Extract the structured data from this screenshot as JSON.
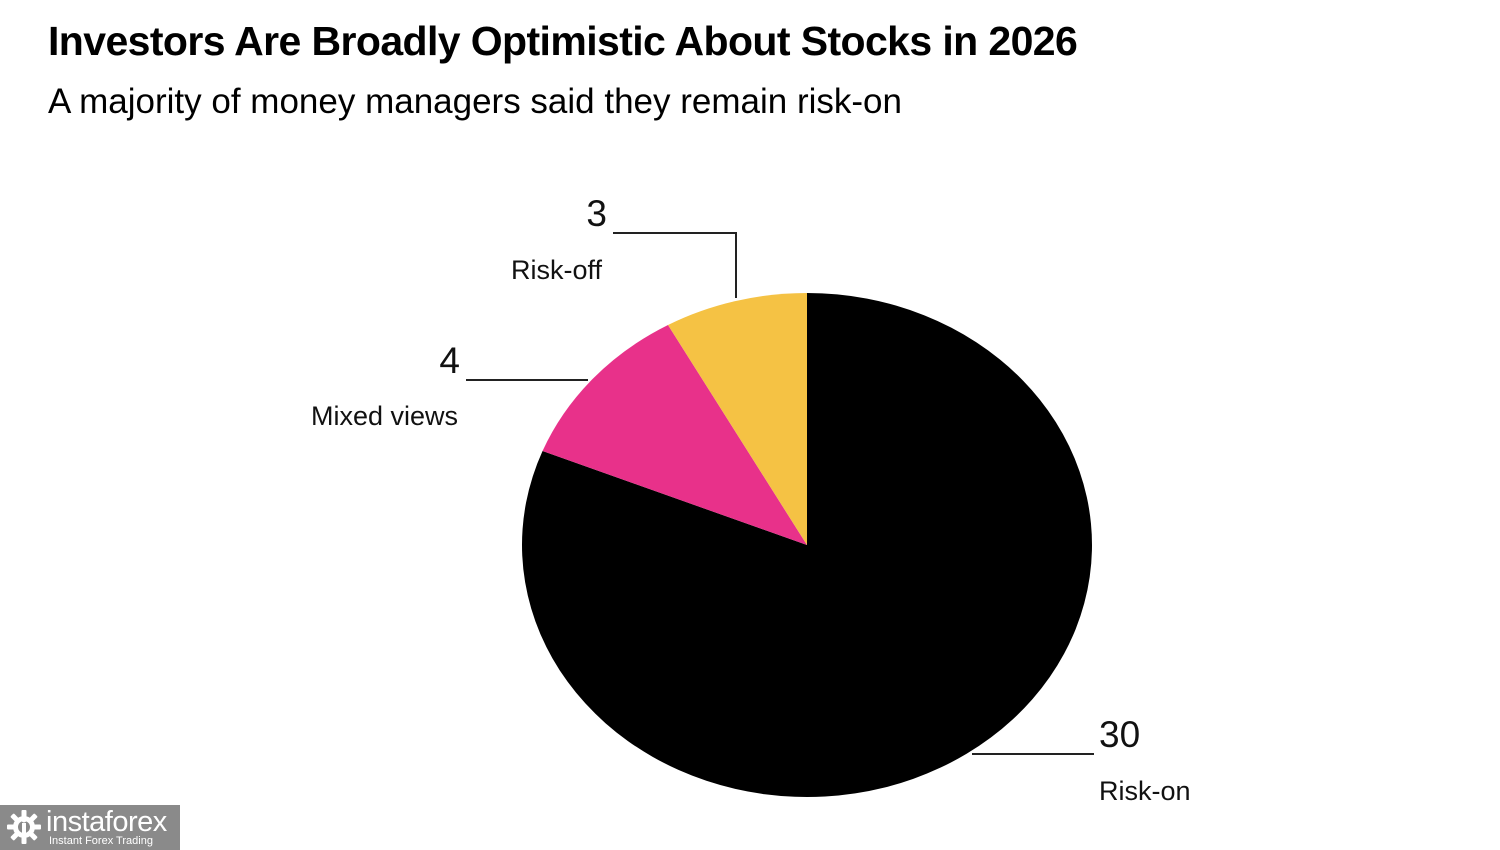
{
  "title": "Investors Are Broadly Optimistic About Stocks in 2026",
  "subtitle": "A majority of money managers said they remain risk-on",
  "chart_data": {
    "type": "pie",
    "title": "Investors Are Broadly Optimistic About Stocks in 2026",
    "subtitle": "A majority of money managers said they remain risk-on",
    "start": "12 o'clock",
    "direction": "clockwise",
    "slices": [
      {
        "label": "Risk-on",
        "value": 30,
        "value_label": "30",
        "color": "#000000"
      },
      {
        "label": "Mixed views",
        "value": 4,
        "value_label": "4",
        "color": "#E8318A"
      },
      {
        "label": "Risk-off",
        "value": 3,
        "value_label": "3",
        "color": "#F5C244"
      }
    ],
    "total": 37
  },
  "watermark": {
    "brand": "instaforex",
    "tagline": "Instant Forex Trading",
    "icon": "gear-logo-icon"
  }
}
